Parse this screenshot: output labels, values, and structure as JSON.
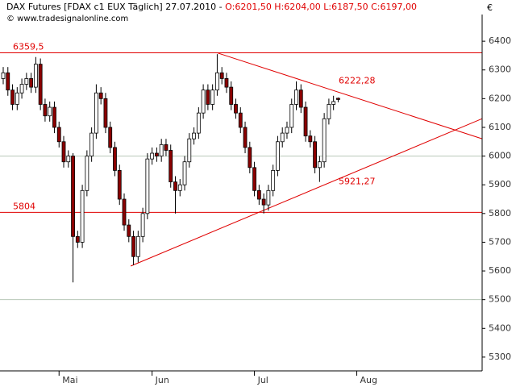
{
  "chart_data": {
    "type": "candlestick",
    "title": "DAX Futures [FDAX c1 EUX  Täglich] 27.07.2010 - ",
    "quote": "O:6201,50 H:6204,00 L:6187,50 C:6197,00",
    "subtitle": "© www.tradesignalonline.com",
    "y_axis_label": "€",
    "categories": [
      null,
      null,
      null,
      null,
      null,
      null,
      null,
      null,
      null,
      null,
      null,
      null,
      "Mai",
      null,
      null,
      null,
      null,
      null,
      null,
      null,
      null,
      null,
      null,
      null,
      null,
      null,
      null,
      null,
      null,
      null,
      null,
      null,
      "Jun",
      null,
      null,
      null,
      null,
      null,
      null,
      null,
      null,
      null,
      null,
      null,
      null,
      null,
      null,
      null,
      null,
      null,
      null,
      null,
      null,
      null,
      "Jul",
      null,
      null,
      null,
      null,
      null,
      null,
      null,
      null,
      null,
      null,
      null,
      null,
      null,
      null,
      null,
      null,
      null,
      null,
      null,
      null,
      null,
      "Aug",
      null,
      null,
      null,
      null,
      null,
      null,
      null,
      null,
      null,
      null,
      null,
      null,
      null,
      null,
      null,
      null,
      null,
      null,
      null,
      null,
      null,
      null,
      null,
      null,
      null,
      null,
      null
    ],
    "open": [
      6270,
      6290,
      6230,
      6180,
      6220,
      6250,
      6270,
      6240,
      6320,
      6180,
      6140,
      6170,
      6100,
      6050,
      5980,
      6000,
      5720,
      5700,
      5880,
      6000,
      6080,
      6220,
      6200,
      6100,
      6030,
      5950,
      5850,
      5760,
      5720,
      5650,
      5720,
      5800,
      5990,
      6010,
      6000,
      6040,
      6020,
      5910,
      5880,
      5900,
      5980,
      6060,
      6080,
      6150,
      6230,
      6180,
      6230,
      6290,
      6270,
      6240,
      6180,
      6150,
      6100,
      6030,
      5960,
      5880,
      5850,
      5830,
      5880,
      5950,
      6050,
      6080,
      6100,
      6180,
      6230,
      6170,
      6070,
      6050,
      5960,
      5980,
      6130,
      6180,
      6201.5,
      null,
      null,
      null,
      null,
      null,
      null,
      null,
      null,
      null,
      null,
      null,
      null,
      null,
      null,
      null,
      null,
      null,
      null,
      null,
      null,
      null,
      null,
      null,
      null,
      null,
      null,
      null,
      null,
      null,
      null,
      null
    ],
    "high": [
      6310,
      6310,
      6250,
      6240,
      6270,
      6290,
      6290,
      6345,
      6340,
      6200,
      6190,
      6190,
      6120,
      6070,
      6020,
      6010,
      5740,
      5900,
      6020,
      6100,
      6250,
      6240,
      6220,
      6120,
      6050,
      5970,
      5870,
      5780,
      5740,
      5740,
      5820,
      6010,
      6030,
      6030,
      6060,
      6060,
      6040,
      5930,
      5920,
      6000,
      6080,
      6100,
      6170,
      6250,
      6250,
      6250,
      6355,
      6310,
      6290,
      6260,
      6200,
      6170,
      6120,
      6050,
      5980,
      5900,
      5870,
      5900,
      5970,
      6070,
      6100,
      6120,
      6200,
      6260,
      6250,
      6190,
      6090,
      6070,
      6000,
      6150,
      6200,
      6210,
      6204,
      null,
      null,
      null,
      null,
      null,
      null,
      null,
      null,
      null,
      null,
      null,
      null,
      null,
      null,
      null,
      null,
      null,
      null,
      null,
      null,
      null,
      null,
      null,
      null,
      null,
      null,
      null,
      null,
      null,
      null,
      null
    ],
    "low": [
      6250,
      6210,
      6160,
      6160,
      6200,
      6230,
      6220,
      6220,
      6160,
      6120,
      6120,
      6080,
      6030,
      5960,
      5960,
      5560,
      5680,
      5680,
      5860,
      5980,
      6060,
      6180,
      6080,
      6010,
      5930,
      5830,
      5740,
      5700,
      5620,
      5630,
      5700,
      5780,
      5970,
      5980,
      5980,
      6000,
      5890,
      5800,
      5860,
      5880,
      5960,
      6040,
      6060,
      6130,
      6160,
      6160,
      6210,
      6250,
      6220,
      6160,
      6130,
      6080,
      6010,
      5940,
      5860,
      5830,
      5800,
      5810,
      5860,
      5930,
      6030,
      6060,
      6080,
      6160,
      6150,
      6050,
      6030,
      5940,
      5910,
      5960,
      6110,
      6160,
      6187.5,
      null,
      null,
      null,
      null,
      null,
      null,
      null,
      null,
      null,
      null,
      null,
      null,
      null,
      null,
      null,
      null,
      null,
      null,
      null,
      null,
      null,
      null,
      null,
      null,
      null,
      null,
      null,
      null,
      null,
      null,
      null
    ],
    "close": [
      6290,
      6230,
      6180,
      6220,
      6250,
      6270,
      6240,
      6320,
      6180,
      6140,
      6170,
      6100,
      6050,
      5980,
      6000,
      5720,
      5700,
      5880,
      6000,
      6080,
      6220,
      6200,
      6100,
      6030,
      5950,
      5850,
      5760,
      5720,
      5650,
      5720,
      5800,
      5990,
      6010,
      6000,
      6040,
      6020,
      5910,
      5880,
      5900,
      5980,
      6060,
      6080,
      6150,
      6230,
      6180,
      6230,
      6290,
      6270,
      6240,
      6180,
      6150,
      6100,
      6030,
      5960,
      5880,
      5850,
      5830,
      5880,
      5950,
      6050,
      6080,
      6100,
      6180,
      6230,
      6170,
      6070,
      6050,
      5960,
      5980,
      6130,
      6180,
      6190,
      6197,
      null,
      null,
      null,
      null,
      null,
      null,
      null,
      null,
      null,
      null,
      null,
      null,
      null,
      null,
      null,
      null,
      null,
      null,
      null,
      null,
      null,
      null,
      null,
      null,
      null,
      null,
      null,
      null,
      null,
      null,
      null
    ],
    "up_color": "#ffffff",
    "down_color": "#8b0000",
    "ylim": [
      5252,
      6493
    ],
    "yticks": [
      5300,
      5400,
      5500,
      5600,
      5700,
      5800,
      5900,
      6000,
      6100,
      6200,
      6300,
      6400
    ],
    "major_gridlines": [
      5500,
      6000
    ],
    "levels": [
      {
        "value": 6359.5,
        "label": "6359,5"
      },
      {
        "value": 5804,
        "label": "5804"
      }
    ],
    "trendlines": [
      {
        "x": [
          46,
          103
        ],
        "y": [
          6359.5,
          6060
        ],
        "label": {
          "value": 6222.28,
          "label": "6222,28"
        }
      },
      {
        "x": [
          27.4,
          103
        ],
        "y": [
          5617,
          6130.6
        ],
        "label": {
          "value": 5921.27,
          "label": "5921,27"
        }
      }
    ],
    "line_color": "#e00000"
  }
}
